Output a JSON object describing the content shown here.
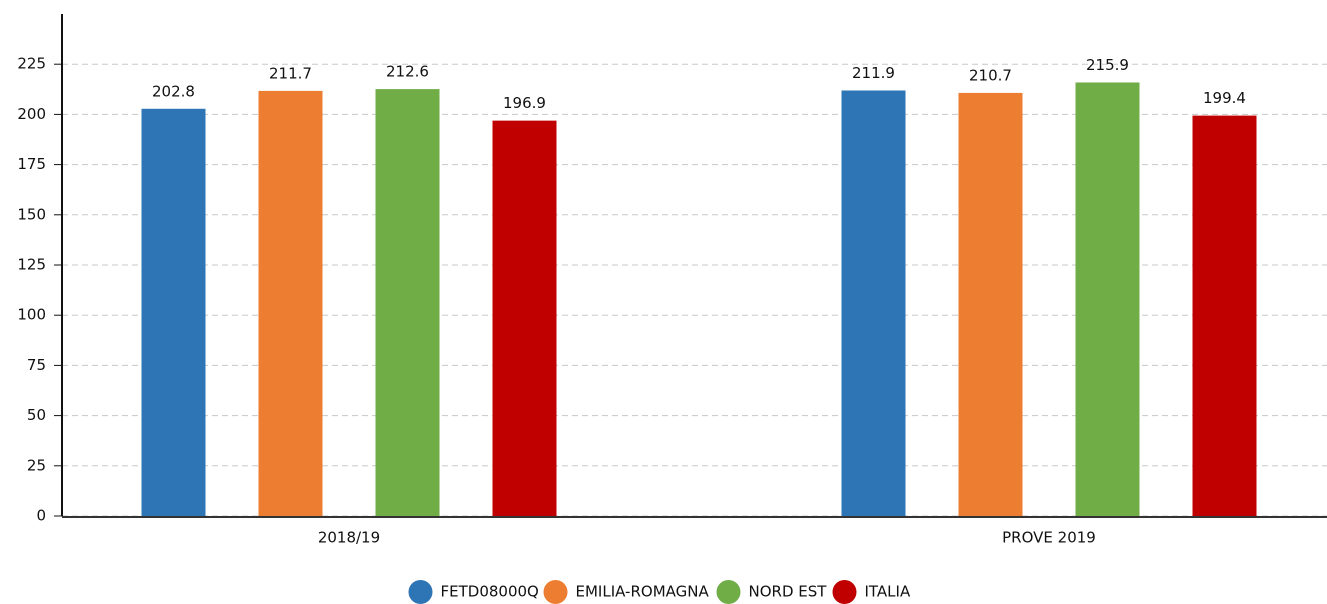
{
  "chart_data": {
    "type": "bar",
    "categories": [
      "2018/19",
      "PROVE 2019"
    ],
    "series": [
      {
        "name": "FETD08000Q",
        "color": "#2e75b6",
        "values": [
          202.8,
          211.9
        ]
      },
      {
        "name": "EMILIA-ROMAGNA",
        "color": "#ed7d31",
        "values": [
          211.7,
          210.7
        ]
      },
      {
        "name": "NORD EST",
        "color": "#70ad47",
        "values": [
          212.6,
          215.9
        ]
      },
      {
        "name": "ITALIA",
        "color": "#c00000",
        "values": [
          196.9,
          199.4
        ]
      }
    ],
    "ylim": [
      0,
      250
    ],
    "yticks": [
      0,
      25,
      50,
      75,
      100,
      125,
      150,
      175,
      200,
      225
    ],
    "grid": true,
    "legend": "bottom"
  }
}
